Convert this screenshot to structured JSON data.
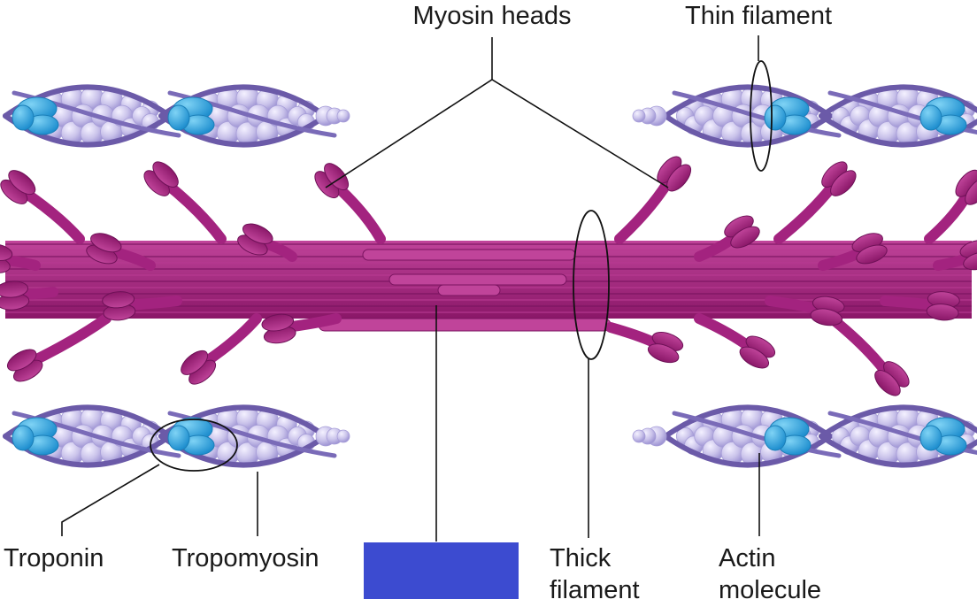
{
  "labels": {
    "myosin_heads": "Myosin heads",
    "thin_filament": "Thin filament",
    "troponin": "Troponin",
    "tropomyosin": "Tropomyosin",
    "thick_filament_line1": "Thick",
    "thick_filament_line2": "filament",
    "actin_molecule_line1": "Actin",
    "actin_molecule_line2": "molecule"
  },
  "colors": {
    "myosin": "#a3237f",
    "myosin_light": "#c0449a",
    "actin": "#c9c2ea",
    "actin_dark": "#8e84c9",
    "tropomyosin": "#6b5aa8",
    "troponin": "#2aa3dd",
    "hidden_label_box": "#3c4bd0"
  }
}
